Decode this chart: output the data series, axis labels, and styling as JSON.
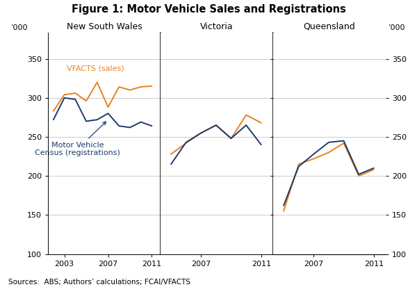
{
  "title": "Figure 1: Motor Vehicle Sales and Registrations",
  "ylabel_left": "’000",
  "ylabel_right": "’000",
  "source_text": "Sources:  ABS; Authors’ calculations; FCAI/VFACTS",
  "ylim": [
    100,
    383
  ],
  "yticks": [
    100,
    150,
    200,
    250,
    300,
    350
  ],
  "panel_titles": [
    "New South Wales",
    "Victoria",
    "Queensland"
  ],
  "color_sales": "#E8821E",
  "color_reg": "#1B3A6B",
  "nsw_years": [
    2002,
    2003,
    2004,
    2005,
    2006,
    2007,
    2008,
    2009,
    2010,
    2011
  ],
  "nsw_sales": [
    283,
    304,
    306,
    296,
    320,
    288,
    314,
    310,
    314,
    315
  ],
  "nsw_reg": [
    272,
    300,
    298,
    270,
    272,
    280,
    264,
    262,
    269,
    264
  ],
  "vic_years": [
    2005,
    2006,
    2007,
    2008,
    2009,
    2010,
    2011
  ],
  "vic_sales": [
    228,
    242,
    255,
    265,
    248,
    278,
    268
  ],
  "vic_reg": [
    215,
    243,
    255,
    265,
    248,
    265,
    240
  ],
  "qld_years": [
    2005,
    2006,
    2007,
    2008,
    2009,
    2010,
    2011
  ],
  "qld_sales": [
    155,
    215,
    222,
    230,
    242,
    200,
    208
  ],
  "qld_reg": [
    162,
    212,
    228,
    243,
    245,
    202,
    210
  ],
  "annotation_vfacts_text": "VFACTS (sales)",
  "annotation_reg_text": "Motor Vehicle\nCensus (registrations)",
  "bg_color": "#FFFFFF",
  "grid_color": "#CCCCCC",
  "spine_color": "#000000"
}
